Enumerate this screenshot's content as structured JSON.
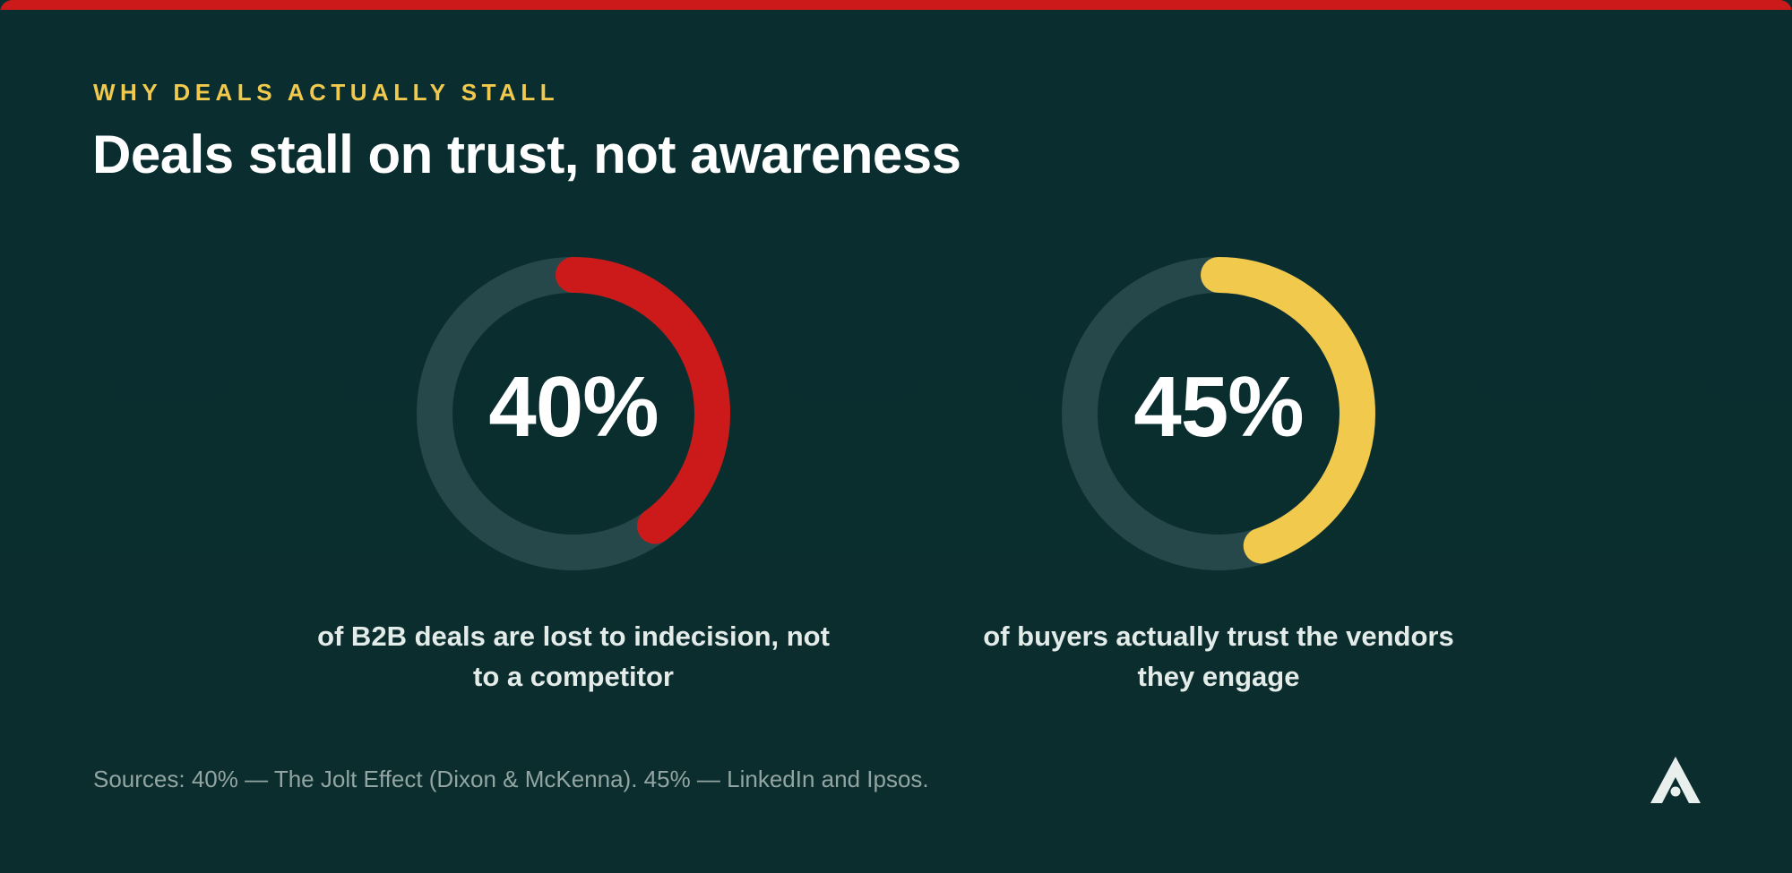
{
  "header": {
    "eyebrow": "WHY DEALS ACTUALLY STALL",
    "title": "Deals stall on trust, not awareness"
  },
  "chart_data": {
    "type": "pie",
    "variant": "donut",
    "series": [
      {
        "value_label": "40%",
        "percent": 40,
        "caption": "of B2B deals are lost to indecision, not to a competitor",
        "color": "#cc1a1a"
      },
      {
        "value_label": "45%",
        "percent": 45,
        "caption": "of buyers actually trust the vendors they engage",
        "color": "#f0c94d"
      }
    ],
    "track_color": "#26484a"
  },
  "footer": {
    "sources": "Sources: 40% — The Jolt Effect (Dixon & McKenna). 45% — LinkedIn and Ipsos."
  },
  "theme": {
    "background": "#0a2e30",
    "accent_red": "#cc1a1a",
    "accent_yellow": "#f0c94d",
    "text": "#ffffff"
  },
  "logo": {
    "icon": "brand-a-logo-icon"
  }
}
